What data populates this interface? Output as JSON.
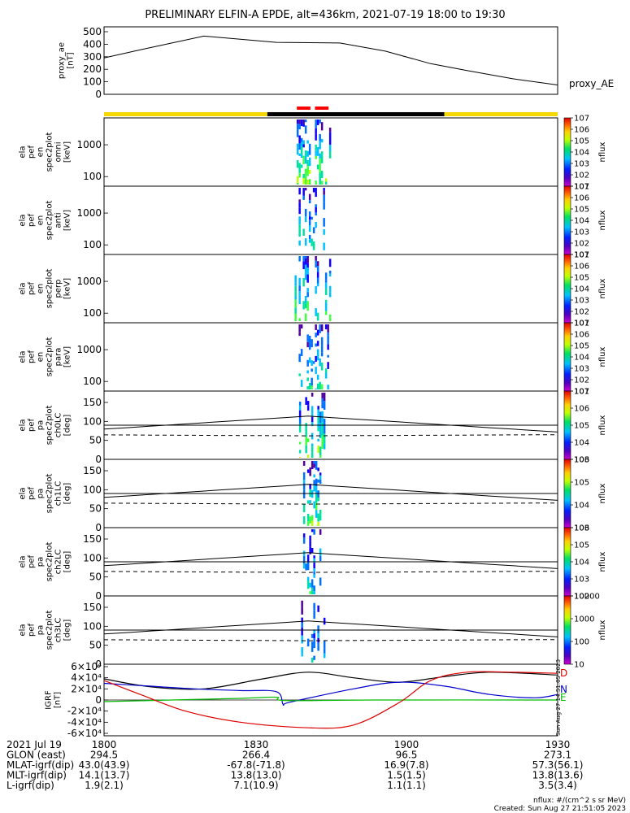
{
  "title": "PRELIMINARY ELFIN-A EPDE, alt=436km, 2021-07-19 18:00 to 19:30",
  "chart_data": [
    {
      "type": "line",
      "name": "proxy_ae",
      "ylabel_lines": [
        "proxy_ae",
        "[nT]"
      ],
      "legend": "proxy_AE",
      "ylim": [
        0,
        500
      ],
      "yticks": [
        "0",
        "100",
        "200",
        "300",
        "400",
        "500"
      ],
      "x": [
        0,
        8,
        22,
        38,
        52,
        62,
        72,
        80,
        90,
        100
      ],
      "values": [
        290,
        355,
        465,
        415,
        410,
        345,
        245,
        190,
        125,
        75
      ]
    },
    {
      "type": "bar",
      "name": "region-bar",
      "segments": [
        {
          "from": 0,
          "to": 36,
          "color": "#f5d800"
        },
        {
          "from": 36,
          "to": 75,
          "color": "#000000"
        },
        {
          "from": 75,
          "to": 100,
          "color": "#f5d800"
        }
      ],
      "markers": [
        {
          "from": 42.5,
          "to": 45.5
        },
        {
          "from": 46.5,
          "to": 49.5
        }
      ]
    },
    {
      "type": "heatmap",
      "name": "ela-pef-en-spec2plot-omni",
      "ylabel_lines": [
        "ela",
        "pef",
        "en",
        "spec2plot",
        "omni",
        "[keV]"
      ],
      "yscale": "log",
      "ylim": [
        50,
        7000
      ],
      "yticks": [
        "100",
        "1000"
      ],
      "yticks_values": [
        100,
        1000
      ],
      "cbar_label": "nflux",
      "cbar_ticks": [
        "101",
        "102",
        "103",
        "104",
        "105",
        "106",
        "107"
      ],
      "cbar_range": [
        1,
        7
      ],
      "activity_x": [
        42,
        50
      ],
      "intensity": 1.0
    },
    {
      "type": "heatmap",
      "name": "ela-pef-en-spec2plot-anti",
      "ylabel_lines": [
        "ela",
        "pef",
        "en",
        "spec2plot",
        "anti",
        "[keV]"
      ],
      "yscale": "log",
      "ylim": [
        50,
        7000
      ],
      "yticks": [
        "100",
        "1000"
      ],
      "yticks_values": [
        100,
        1000
      ],
      "cbar_label": "nflux",
      "cbar_ticks": [
        "101",
        "102",
        "103",
        "104",
        "105",
        "106",
        "107"
      ],
      "cbar_range": [
        1,
        7
      ],
      "activity_x": [
        42,
        50
      ],
      "intensity": 0.75
    },
    {
      "type": "heatmap",
      "name": "ela-pef-en-spec2plot-perp",
      "ylabel_lines": [
        "ela",
        "pef",
        "en",
        "spec2plot",
        "perp",
        "[keV]"
      ],
      "yscale": "log",
      "ylim": [
        50,
        7000
      ],
      "yticks": [
        "100",
        "1000"
      ],
      "yticks_values": [
        100,
        1000
      ],
      "cbar_label": "nflux",
      "cbar_ticks": [
        "101",
        "102",
        "103",
        "104",
        "105",
        "106",
        "107"
      ],
      "cbar_range": [
        1,
        7
      ],
      "activity_x": [
        42,
        50
      ],
      "intensity": 0.95
    },
    {
      "type": "heatmap",
      "name": "ela-pef-en-spec2plot-para",
      "ylabel_lines": [
        "ela",
        "pef",
        "en",
        "spec2plot",
        "para",
        "[keV]"
      ],
      "yscale": "log",
      "ylim": [
        50,
        7000
      ],
      "yticks": [
        "100",
        "1000"
      ],
      "yticks_values": [
        100,
        1000
      ],
      "cbar_label": "nflux",
      "cbar_ticks": [
        "101",
        "102",
        "103",
        "104",
        "105",
        "106",
        "107"
      ],
      "cbar_range": [
        1,
        7
      ],
      "activity_x": [
        42,
        50
      ],
      "intensity": 0.6
    },
    {
      "type": "heatmap",
      "name": "ela-pef-pa-spec2plot-ch0LC",
      "ylabel_lines": [
        "ela",
        "pef",
        "pa",
        "spec2plot",
        "ch0LC",
        "[deg]"
      ],
      "yscale": "linear",
      "ylim": [
        0,
        180
      ],
      "yticks": [
        "0",
        "50",
        "100",
        "150"
      ],
      "yticks_values": [
        0,
        50,
        100,
        150
      ],
      "cbar_label": "nflux",
      "cbar_ticks": [
        "103",
        "104",
        "105",
        "106",
        "107"
      ],
      "cbar_range": [
        3,
        7
      ],
      "activity_x": [
        43,
        49
      ],
      "intensity": 1.0
    },
    {
      "type": "heatmap",
      "name": "ela-pef-pa-spec2plot-ch1LC",
      "ylabel_lines": [
        "ela",
        "pef",
        "pa",
        "spec2plot",
        "ch1LC",
        "[deg]"
      ],
      "yscale": "linear",
      "ylim": [
        0,
        180
      ],
      "yticks": [
        "0",
        "50",
        "100",
        "150"
      ],
      "yticks_values": [
        0,
        50,
        100,
        150
      ],
      "cbar_label": "nflux",
      "cbar_ticks": [
        "103",
        "104",
        "105",
        "106"
      ],
      "cbar_range": [
        3,
        6
      ],
      "activity_x": [
        43,
        49
      ],
      "intensity": 0.85
    },
    {
      "type": "heatmap",
      "name": "ela-pef-pa-spec2plot-ch2LC",
      "ylabel_lines": [
        "ela",
        "pef",
        "pa",
        "spec2plot",
        "ch2LC",
        "[deg]"
      ],
      "yscale": "linear",
      "ylim": [
        0,
        180
      ],
      "yticks": [
        "0",
        "50",
        "100",
        "150"
      ],
      "yticks_values": [
        0,
        50,
        100,
        150
      ],
      "cbar_label": "nflux",
      "cbar_ticks": [
        "102",
        "103",
        "104",
        "105",
        "106"
      ],
      "cbar_range": [
        2,
        6
      ],
      "activity_x": [
        43,
        48
      ],
      "intensity": 0.6
    },
    {
      "type": "heatmap",
      "name": "ela-pef-pa-spec2plot-ch3LC",
      "ylabel_lines": [
        "ela",
        "pef",
        "pa",
        "spec2plot",
        "ch3LC",
        "[deg]"
      ],
      "yscale": "linear",
      "ylim": [
        0,
        180
      ],
      "yticks": [
        "0",
        "50",
        "100",
        "150"
      ],
      "yticks_values": [
        0,
        50,
        100,
        150
      ],
      "cbar_label": "nflux",
      "cbar_ticks": [
        "10",
        "100",
        "1000",
        "10000"
      ],
      "cbar_range": [
        1,
        4
      ],
      "activity_x": [
        43,
        49
      ],
      "intensity": 0.5
    },
    {
      "type": "line",
      "name": "IGRF",
      "ylabel_lines": [
        "IGRF",
        "[nT]"
      ],
      "ylim": [
        -60000,
        60000
      ],
      "yticks": [
        "-6×10⁴",
        "-4×10⁴",
        "-2×10⁴",
        "0",
        "2×10⁴",
        "4×10⁴",
        "6×10⁴"
      ],
      "yticks_values": [
        -60000,
        -40000,
        -20000,
        0,
        20000,
        40000,
        60000
      ],
      "series": [
        {
          "name": "D",
          "color": "#000000",
          "x": [
            0,
            10,
            22,
            35,
            45,
            55,
            65,
            75,
            85,
            100
          ],
          "values": [
            38000,
            24000,
            20000,
            38000,
            50000,
            40000,
            32000,
            42000,
            50000,
            45000
          ]
        },
        {
          "name": "N",
          "color": "#0000cc",
          "x": [
            0,
            10,
            20,
            30,
            38,
            39.5,
            41,
            55,
            65,
            75,
            85,
            95,
            100
          ],
          "values": [
            30000,
            25000,
            20000,
            17000,
            15000,
            -8000,
            -4000,
            20000,
            32000,
            25000,
            10000,
            4000,
            10000
          ]
        },
        {
          "name": "E",
          "color": "#00bb00",
          "x": [
            0,
            15,
            30,
            38,
            40,
            60,
            100
          ],
          "values": [
            -3000,
            0,
            3000,
            5000,
            -1000,
            0,
            0
          ]
        },
        {
          "name": "R",
          "color": "#dd0000",
          "x": [
            0,
            8,
            18,
            30,
            45,
            55,
            65,
            72,
            80,
            90,
            100
          ],
          "values": [
            35000,
            10000,
            -20000,
            -40000,
            -50000,
            -45000,
            -5000,
            35000,
            50000,
            50000,
            48000
          ]
        }
      ],
      "legend": [
        "D",
        "N",
        "E"
      ],
      "side_stamp": "Sun Aug 27 14:51:05 2023"
    }
  ],
  "footer": {
    "rows": [
      {
        "label": "2021 Jul 19",
        "values": [
          "1800",
          "1830",
          "1900",
          "1930"
        ]
      },
      {
        "label": "GLON (east)",
        "values": [
          "294.5",
          "266.4",
          "96.5",
          "273.1"
        ]
      },
      {
        "label": "MLAT-igrf(dip)",
        "values": [
          "43.0(43.9)",
          "-67.8(-71.8)",
          "16.9(7.8)",
          "57.3(56.1)"
        ]
      },
      {
        "label": "MLT-igrf(dip)",
        "values": [
          "14.1(13.7)",
          "13.8(13.0)",
          "1.5(1.5)",
          "13.8(13.6)"
        ]
      },
      {
        "label": "L-igrf(dip)",
        "values": [
          "1.9(2.1)",
          "7.1(10.9)",
          "1.1(1.1)",
          "3.5(3.4)"
        ]
      }
    ],
    "units_note": "nflux: #/(cm^2 s sr MeV)",
    "created": "Created: Sun Aug 27 21:51:05 2023"
  }
}
